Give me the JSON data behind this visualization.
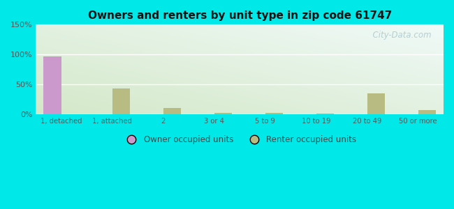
{
  "title": "Owners and renters by unit type in zip code 61747",
  "categories": [
    "1, detached",
    "1, attached",
    "2",
    "3 or 4",
    "5 to 9",
    "10 to 19",
    "20 to 49",
    "50 or more"
  ],
  "owner_values": [
    97,
    0,
    0,
    0,
    0,
    0,
    0,
    0
  ],
  "renter_values": [
    0,
    43,
    10,
    2,
    2,
    1,
    35,
    7
  ],
  "owner_color": "#cc99cc",
  "renter_color": "#b8bc82",
  "ylim": [
    0,
    150
  ],
  "yticks": [
    0,
    50,
    100,
    150
  ],
  "ytick_labels": [
    "0%",
    "50%",
    "100%",
    "150%"
  ],
  "outer_background": "#00e8e8",
  "bar_width": 0.35,
  "legend_owner": "Owner occupied units",
  "legend_renter": "Renter occupied units",
  "watermark": "  City-Data.com"
}
